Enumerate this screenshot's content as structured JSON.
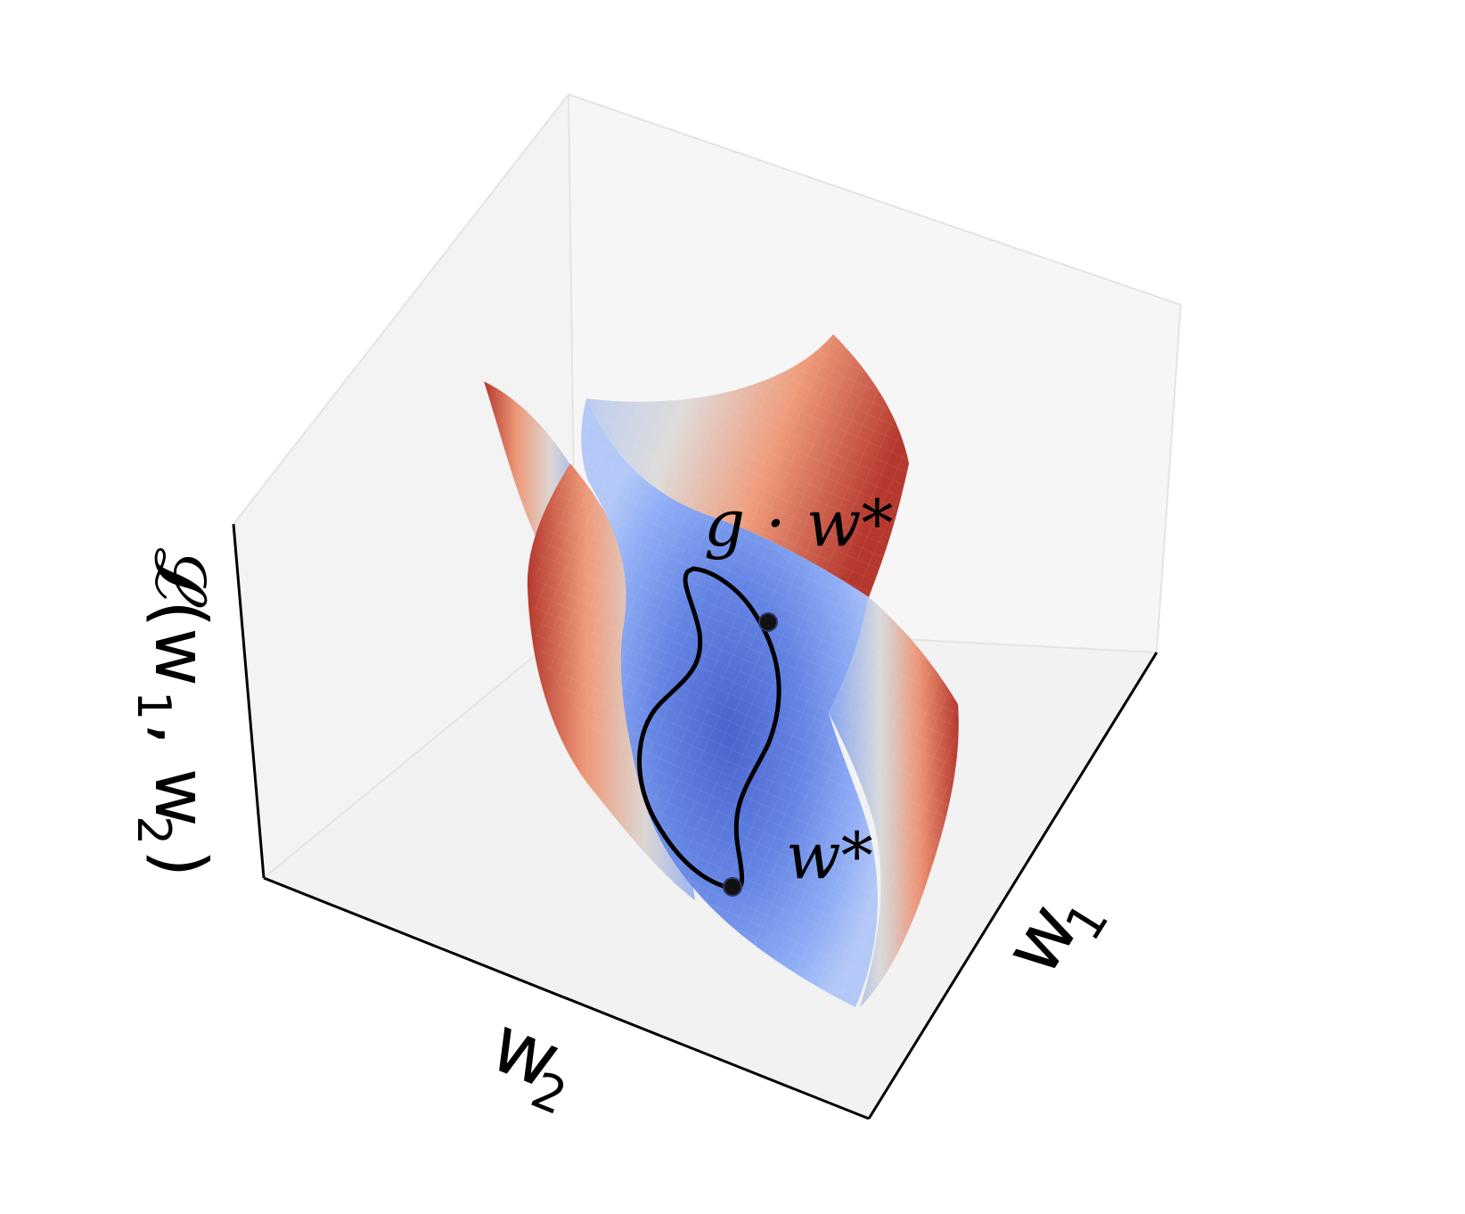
{
  "figure": {
    "axes": {
      "x_label": "w",
      "x_sub": "1",
      "y_label": "w",
      "y_sub": "2",
      "z_label": "𝓛(w",
      "z_sub1": "1",
      "z_mid": ", w",
      "z_sub2": "2",
      "z_end": ")"
    },
    "annotations": {
      "orbit_point_label": "g · w*",
      "optimum_label": "w*"
    },
    "colors": {
      "low": "#4f6fdc",
      "mid": "#dcdcdc",
      "high": "#b5382e",
      "pane": "#f2f2f2"
    },
    "surface": {
      "colormap": "coolwarm",
      "description_visible": false
    }
  }
}
